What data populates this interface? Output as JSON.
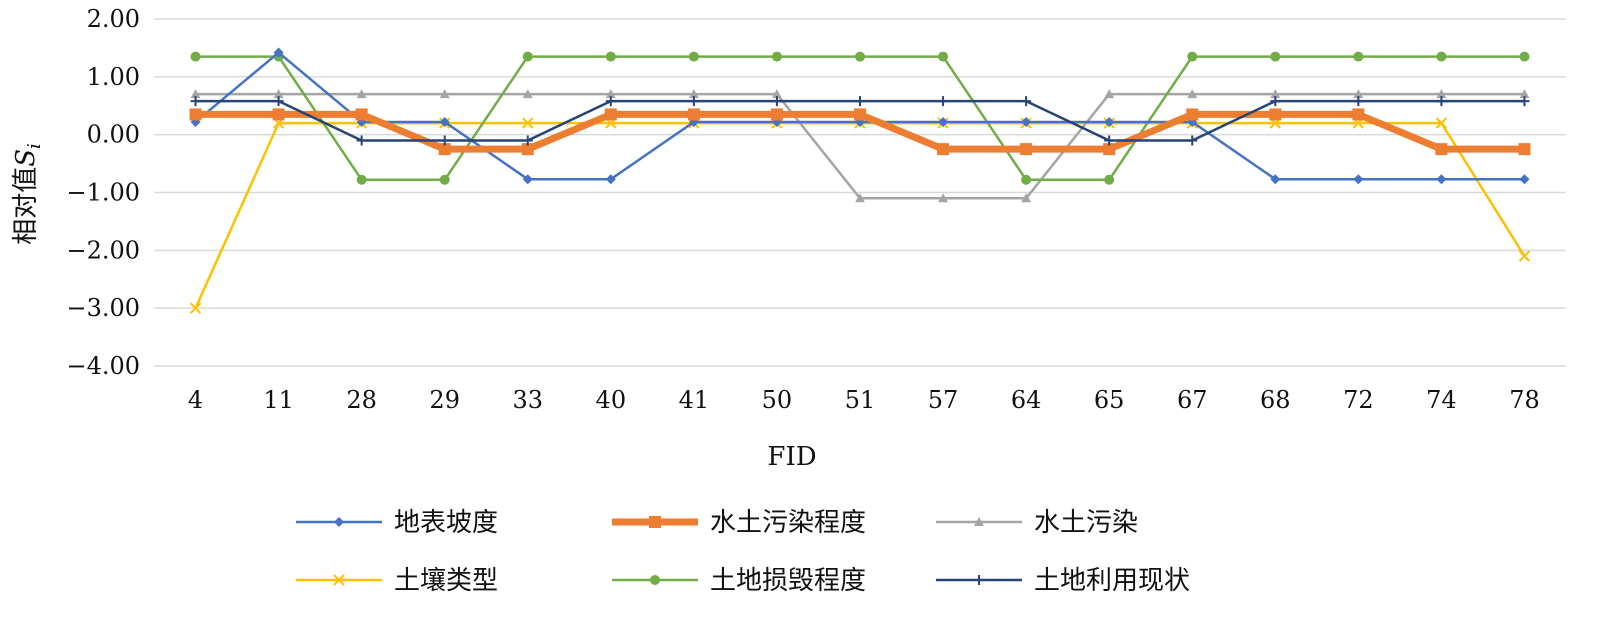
{
  "chart_data": {
    "type": "line",
    "title": "",
    "xlabel": "FID",
    "ylabel": "相对值",
    "ylabel_sub": "S",
    "ylabel_subscript": "i",
    "ylim": [
      -4,
      2
    ],
    "yticks": [
      "2.00",
      "1.00",
      "0.00",
      "−1.00",
      "−2.00",
      "−3.00",
      "−4.00"
    ],
    "ytick_values": [
      2,
      1,
      0,
      -1,
      -2,
      -3,
      -4
    ],
    "grid": true,
    "legend_position": "bottom",
    "categories": [
      "4",
      "11",
      "28",
      "29",
      "33",
      "40",
      "41",
      "50",
      "51",
      "57",
      "64",
      "65",
      "67",
      "68",
      "72",
      "74",
      "78"
    ],
    "series": [
      {
        "name": "地表坡度",
        "color": "#4472c4",
        "marker": "diamond",
        "width": 2.5,
        "values": [
          0.22,
          1.42,
          0.22,
          0.22,
          -0.77,
          -0.77,
          0.22,
          0.22,
          0.22,
          0.22,
          0.22,
          0.22,
          0.22,
          -0.77,
          -0.77,
          -0.77,
          -0.77
        ]
      },
      {
        "name": "水土污染程度",
        "color": "#ed7d31",
        "marker": "square",
        "width": 7,
        "values": [
          0.35,
          0.35,
          0.35,
          -0.25,
          -0.25,
          0.35,
          0.35,
          0.35,
          0.35,
          -0.25,
          -0.25,
          -0.25,
          0.35,
          0.35,
          0.35,
          -0.25,
          -0.25
        ]
      },
      {
        "name": "水土污染",
        "color": "#a5a5a5",
        "marker": "triangle",
        "width": 2.5,
        "values": [
          0.7,
          0.7,
          0.7,
          0.7,
          0.7,
          0.7,
          0.7,
          0.7,
          -1.1,
          -1.1,
          -1.1,
          0.7,
          0.7,
          0.7,
          0.7,
          0.7,
          0.7
        ]
      },
      {
        "name": "土壤类型",
        "color": "#ffc000",
        "marker": "x",
        "width": 2.5,
        "values": [
          -3.0,
          0.2,
          0.2,
          0.2,
          0.2,
          0.2,
          0.2,
          0.2,
          0.2,
          0.2,
          0.2,
          0.2,
          0.2,
          0.2,
          0.2,
          0.2,
          -2.1
        ]
      },
      {
        "name": "土地损毁程度",
        "color": "#70ad47",
        "marker": "circle",
        "width": 2.5,
        "values": [
          1.35,
          1.35,
          -0.78,
          -0.78,
          1.35,
          1.35,
          1.35,
          1.35,
          1.35,
          1.35,
          -0.78,
          -0.78,
          1.35,
          1.35,
          1.35,
          1.35,
          1.35
        ]
      },
      {
        "name": "土地利用现状",
        "color": "#264478",
        "marker": "plus",
        "width": 2.5,
        "values": [
          0.58,
          0.58,
          -0.1,
          -0.1,
          -0.1,
          0.58,
          0.58,
          0.58,
          0.58,
          0.58,
          0.58,
          -0.1,
          -0.1,
          0.58,
          0.58,
          0.58,
          0.58
        ]
      }
    ]
  }
}
